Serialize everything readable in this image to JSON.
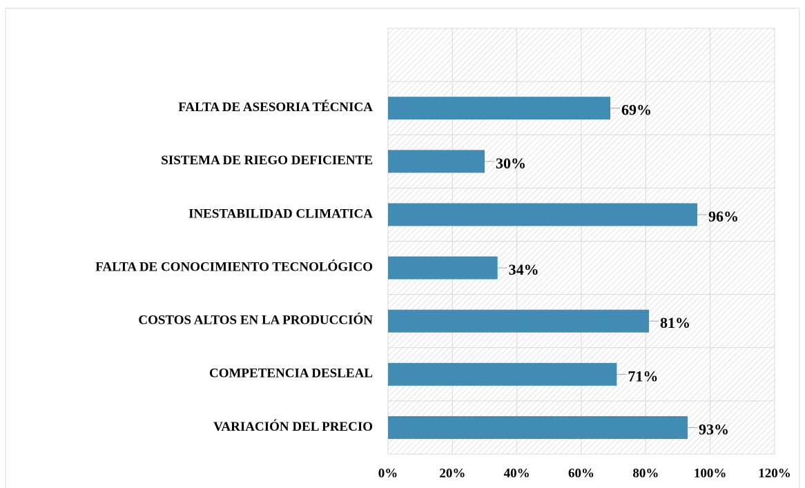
{
  "chart_data": {
    "type": "hbar",
    "categories": [
      null,
      "FALTA DE ASESORIA TÉCNICA",
      "SISTEMA DE RIEGO  DEFICIENTE",
      "INESTABILIDAD CLIMATICA",
      "FALTA DE CONOCIMIENTO TECNOLÓGICO",
      "COSTOS ALTOS EN LA PRODUCCIÓN",
      "COMPETENCIA DESLEAL",
      "VARIACIÓN DEL PRECIO"
    ],
    "values": [
      null,
      69,
      30,
      96,
      34,
      81,
      71,
      93
    ],
    "value_labels": [
      null,
      "69%",
      "30%",
      "96%",
      "34%",
      "81%",
      "71%",
      "93%"
    ],
    "color": "#428bb5",
    "xlim": [
      0,
      120
    ],
    "xticks": [
      {
        "value": 0,
        "label": "0%"
      },
      {
        "value": 20,
        "label": "20%"
      },
      {
        "value": 40,
        "label": "40%"
      },
      {
        "value": 60,
        "label": "60%"
      },
      {
        "value": 80,
        "label": "80%"
      },
      {
        "value": 100,
        "label": "100%"
      },
      {
        "value": 120,
        "label": "120%"
      }
    ],
    "grid": true
  }
}
